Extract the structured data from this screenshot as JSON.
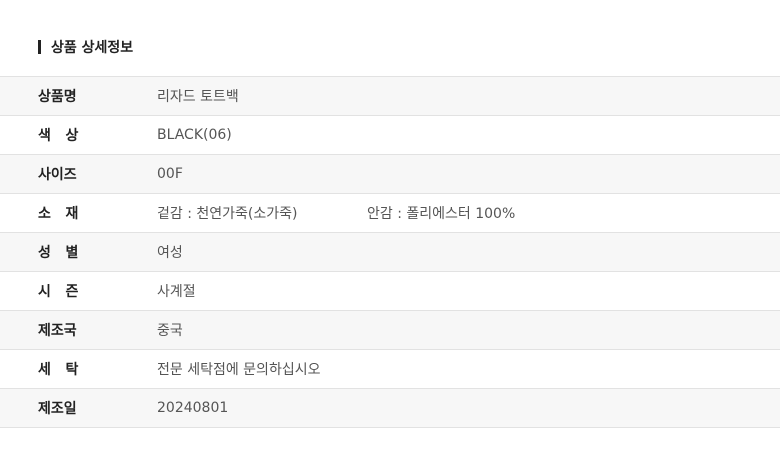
{
  "section_title": "상품 상세정보",
  "rows": [
    {
      "label": "상품명",
      "value": "리자드 토트백"
    },
    {
      "label": "색   상",
      "value": "BLACK(06)"
    },
    {
      "label": "사이즈",
      "value": "00F"
    },
    {
      "label": "소   재",
      "value": "겉감 : 천연가죽(소가죽)",
      "value2": "안감 : 폴리에스터 100%"
    },
    {
      "label": "성   별",
      "value": "여성"
    },
    {
      "label": "시   즌",
      "value": "사계절"
    },
    {
      "label": "제조국",
      "value": "중국"
    },
    {
      "label": "세   탁",
      "value": "전문 세탁점에 문의하십시오"
    },
    {
      "label": "제조일",
      "value": "20240801"
    }
  ]
}
